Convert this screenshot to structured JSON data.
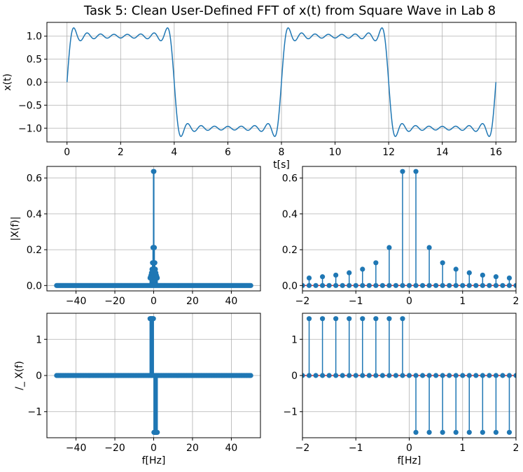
{
  "figure": {
    "title": "Task 5: Clean User-Defined FFT of x(t) from Square Wave in Lab 8",
    "line_color": "#1f77b4",
    "baseline_color": "#d62728"
  },
  "chart_data": [
    {
      "id": "time",
      "type": "line",
      "title": "Task 5: Clean User-Defined FFT of x(t) from Square Wave in Lab 8",
      "xlabel": "t[s]",
      "ylabel": "x(t)",
      "xlim": [
        -0.75,
        16.75
      ],
      "ylim": [
        -1.3,
        1.3
      ],
      "xticks": [
        0,
        2,
        4,
        6,
        8,
        10,
        12,
        14,
        16
      ],
      "yticks": [
        -1.0,
        -0.5,
        0.0,
        0.5,
        1.0
      ],
      "grid": true,
      "signal": {
        "period_s": 8,
        "harmonics": [
          1,
          3,
          5,
          7,
          9,
          11,
          13,
          15
        ],
        "t_range": [
          0,
          16
        ]
      }
    },
    {
      "id": "mag_full",
      "type": "stem",
      "xlabel": "",
      "ylabel": "|X(f)|",
      "xlim": [
        -55,
        55
      ],
      "ylim": [
        -0.03,
        0.665
      ],
      "xticks": [
        -40,
        -20,
        0,
        20,
        40
      ],
      "yticks": [
        0.0,
        0.2,
        0.4,
        0.6
      ],
      "grid": true,
      "freq_range": [
        -50,
        50
      ],
      "nonzero": [
        {
          "f": -0.125,
          "v": 0.637
        },
        {
          "f": 0.125,
          "v": 0.637
        },
        {
          "f": -0.375,
          "v": 0.212
        },
        {
          "f": 0.375,
          "v": 0.212
        },
        {
          "f": -0.625,
          "v": 0.127
        },
        {
          "f": 0.625,
          "v": 0.127
        },
        {
          "f": -0.875,
          "v": 0.091
        },
        {
          "f": 0.875,
          "v": 0.091
        },
        {
          "f": -1.125,
          "v": 0.071
        },
        {
          "f": 1.125,
          "v": 0.071
        },
        {
          "f": -1.375,
          "v": 0.058
        },
        {
          "f": 1.375,
          "v": 0.058
        },
        {
          "f": -1.625,
          "v": 0.049
        },
        {
          "f": 1.625,
          "v": 0.049
        },
        {
          "f": -1.875,
          "v": 0.042
        },
        {
          "f": 1.875,
          "v": 0.042
        }
      ]
    },
    {
      "id": "mag_zoom",
      "type": "stem",
      "xlabel": "",
      "ylabel": "",
      "xlim": [
        -2,
        2
      ],
      "ylim": [
        -0.03,
        0.665
      ],
      "xticks": [
        -2,
        -1,
        0,
        1,
        2
      ],
      "yticks": [
        0.0,
        0.2,
        0.4,
        0.6
      ],
      "grid": true,
      "freq_range": [
        -2,
        2
      ],
      "nonzero": [
        {
          "f": -0.125,
          "v": 0.637
        },
        {
          "f": 0.125,
          "v": 0.637
        },
        {
          "f": -0.375,
          "v": 0.212
        },
        {
          "f": 0.375,
          "v": 0.212
        },
        {
          "f": -0.625,
          "v": 0.127
        },
        {
          "f": 0.625,
          "v": 0.127
        },
        {
          "f": -0.875,
          "v": 0.091
        },
        {
          "f": 0.875,
          "v": 0.091
        },
        {
          "f": -1.125,
          "v": 0.071
        },
        {
          "f": 1.125,
          "v": 0.071
        },
        {
          "f": -1.375,
          "v": 0.058
        },
        {
          "f": 1.375,
          "v": 0.058
        },
        {
          "f": -1.625,
          "v": 0.049
        },
        {
          "f": 1.625,
          "v": 0.049
        },
        {
          "f": -1.875,
          "v": 0.042
        },
        {
          "f": 1.875,
          "v": 0.042
        }
      ]
    },
    {
      "id": "phase_full",
      "type": "stem",
      "xlabel": "f[Hz]",
      "ylabel": "/_ X(f)",
      "xlim": [
        -55,
        55
      ],
      "ylim": [
        -1.72,
        1.72
      ],
      "xticks": [
        -40,
        -20,
        0,
        20,
        40
      ],
      "yticks": [
        -1,
        0,
        1
      ],
      "grid": true,
      "freq_range": [
        -50,
        50
      ],
      "nonzero_phase": [
        {
          "f": -1.875,
          "v": 1.571
        },
        {
          "f": -1.625,
          "v": 1.571
        },
        {
          "f": -1.375,
          "v": 1.571
        },
        {
          "f": -1.125,
          "v": 1.571
        },
        {
          "f": -0.875,
          "v": 1.571
        },
        {
          "f": -0.625,
          "v": 1.571
        },
        {
          "f": -0.375,
          "v": 1.571
        },
        {
          "f": -0.125,
          "v": 1.571
        },
        {
          "f": 0.125,
          "v": -1.571
        },
        {
          "f": 0.375,
          "v": -1.571
        },
        {
          "f": 0.625,
          "v": -1.571
        },
        {
          "f": 0.875,
          "v": -1.571
        },
        {
          "f": 1.125,
          "v": -1.571
        },
        {
          "f": 1.375,
          "v": -1.571
        },
        {
          "f": 1.625,
          "v": -1.571
        },
        {
          "f": 1.875,
          "v": -1.571
        }
      ]
    },
    {
      "id": "phase_zoom",
      "type": "stem",
      "xlabel": "f[Hz]",
      "ylabel": "",
      "xlim": [
        -2,
        2
      ],
      "ylim": [
        -1.72,
        1.72
      ],
      "xticks": [
        -2,
        -1,
        0,
        1,
        2
      ],
      "yticks": [
        -1,
        0,
        1
      ],
      "grid": true,
      "freq_range": [
        -2,
        2
      ],
      "nonzero_phase": [
        {
          "f": -1.875,
          "v": 1.571
        },
        {
          "f": -1.625,
          "v": 1.571
        },
        {
          "f": -1.375,
          "v": 1.571
        },
        {
          "f": -1.125,
          "v": 1.571
        },
        {
          "f": -0.875,
          "v": 1.571
        },
        {
          "f": -0.625,
          "v": 1.571
        },
        {
          "f": -0.375,
          "v": 1.571
        },
        {
          "f": -0.125,
          "v": 1.571
        },
        {
          "f": 0.125,
          "v": -1.571
        },
        {
          "f": 0.375,
          "v": -1.571
        },
        {
          "f": 0.625,
          "v": -1.571
        },
        {
          "f": 0.875,
          "v": -1.571
        },
        {
          "f": 1.125,
          "v": -1.571
        },
        {
          "f": 1.375,
          "v": -1.571
        },
        {
          "f": 1.625,
          "v": -1.571
        },
        {
          "f": 1.875,
          "v": -1.571
        }
      ]
    }
  ]
}
